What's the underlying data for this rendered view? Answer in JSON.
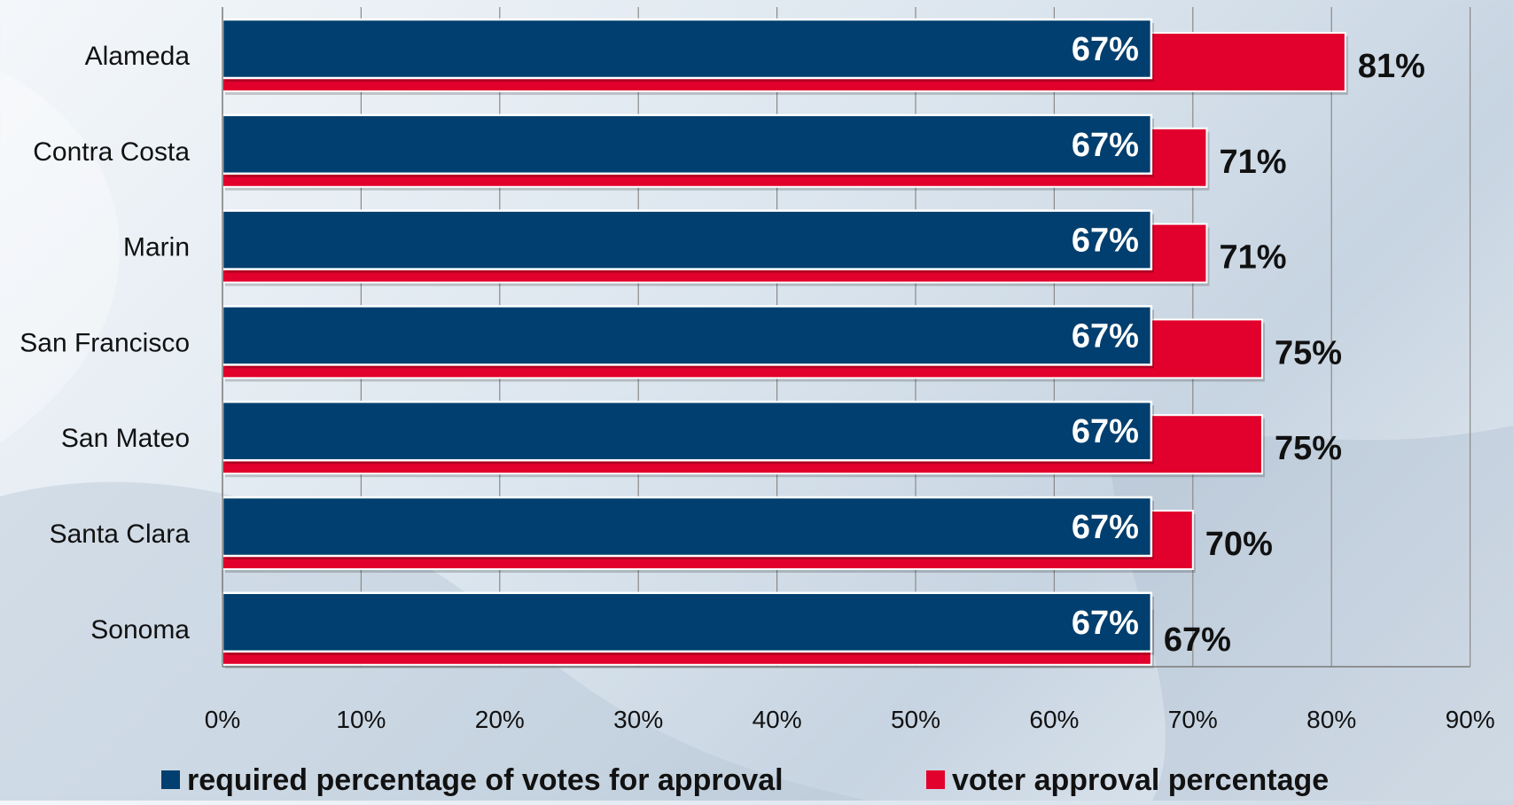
{
  "chart_data": {
    "type": "bar",
    "orientation": "horizontal",
    "categories": [
      "Alameda",
      "Contra Costa",
      "Marin",
      "San Francisco",
      "San Mateo",
      "Santa Clara",
      "Sonoma"
    ],
    "series": [
      {
        "name": "required percentage of votes for approval",
        "values": [
          67,
          67,
          67,
          67,
          67,
          67,
          67
        ],
        "labels": [
          "67%",
          "67%",
          "67%",
          "67%",
          "67%",
          "67%",
          "67%"
        ],
        "color": "#003f6f"
      },
      {
        "name": "voter approval percentage",
        "values": [
          81,
          71,
          71,
          75,
          75,
          70,
          67
        ],
        "labels": [
          "81%",
          "71%",
          "71%",
          "75%",
          "75%",
          "70%",
          "67%"
        ],
        "color": "#e2002c"
      }
    ],
    "xlim": [
      0,
      90
    ],
    "x_ticks": [
      "0%",
      "10%",
      "20%",
      "30%",
      "40%",
      "50%",
      "60%",
      "70%",
      "80%",
      "90%"
    ],
    "x_tick_values": [
      0,
      10,
      20,
      30,
      40,
      50,
      60,
      70,
      80,
      90
    ],
    "title": "",
    "xlabel": "",
    "ylabel": "",
    "grid": true,
    "legend_position": "bottom"
  }
}
